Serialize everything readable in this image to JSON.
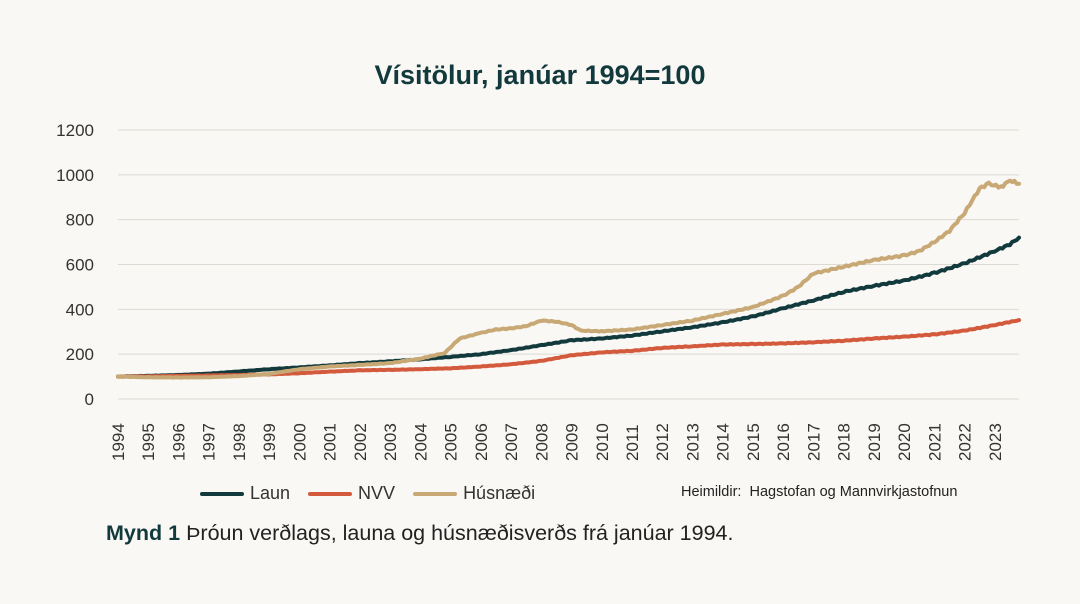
{
  "chart_data": {
    "type": "line",
    "title": "Vísitölur, janúar 1994=100",
    "x": [
      1994,
      1995,
      1996,
      1997,
      1998,
      1999,
      2000,
      2001,
      2002,
      2003,
      2004,
      2005,
      2006,
      2007,
      2008,
      2009,
      2010,
      2011,
      2012,
      2013,
      2014,
      2015,
      2016,
      2017,
      2018,
      2019,
      2020,
      2021,
      2022,
      2023
    ],
    "y_ticks": [
      0,
      200,
      400,
      600,
      800,
      1000,
      1200
    ],
    "ylim": [
      0,
      1200
    ],
    "xlabel": "",
    "ylabel": "",
    "series": [
      {
        "name": "Laun",
        "color": "#123a3d",
        "points": [
          [
            1994,
            100
          ],
          [
            1995,
            103
          ],
          [
            1996,
            107
          ],
          [
            1997,
            113
          ],
          [
            1998,
            123
          ],
          [
            1999,
            133
          ],
          [
            2000,
            141
          ],
          [
            2001,
            150
          ],
          [
            2002,
            160
          ],
          [
            2003,
            168
          ],
          [
            2004,
            177
          ],
          [
            2005,
            188
          ],
          [
            2006,
            200
          ],
          [
            2007,
            218
          ],
          [
            2008,
            240
          ],
          [
            2009,
            262
          ],
          [
            2010,
            270
          ],
          [
            2011,
            283
          ],
          [
            2012,
            302
          ],
          [
            2013,
            320
          ],
          [
            2014,
            342
          ],
          [
            2015,
            368
          ],
          [
            2016,
            405
          ],
          [
            2017,
            440
          ],
          [
            2018,
            478
          ],
          [
            2019,
            505
          ],
          [
            2020,
            528
          ],
          [
            2021,
            562
          ],
          [
            2022,
            605
          ],
          [
            2023,
            660
          ],
          [
            2023.5,
            690
          ],
          [
            2023.8,
            720
          ]
        ]
      },
      {
        "name": "NVV",
        "color": "#d35a3c",
        "points": [
          [
            1994,
            100
          ],
          [
            1995,
            101
          ],
          [
            1996,
            103
          ],
          [
            1997,
            105
          ],
          [
            1998,
            107
          ],
          [
            1999,
            110
          ],
          [
            2000,
            115
          ],
          [
            2001,
            122
          ],
          [
            2002,
            128
          ],
          [
            2003,
            130
          ],
          [
            2004,
            133
          ],
          [
            2005,
            137
          ],
          [
            2006,
            145
          ],
          [
            2007,
            155
          ],
          [
            2008,
            170
          ],
          [
            2009,
            195
          ],
          [
            2010,
            208
          ],
          [
            2011,
            215
          ],
          [
            2012,
            228
          ],
          [
            2013,
            235
          ],
          [
            2014,
            243
          ],
          [
            2015,
            245
          ],
          [
            2016,
            248
          ],
          [
            2017,
            253
          ],
          [
            2018,
            260
          ],
          [
            2019,
            270
          ],
          [
            2020,
            278
          ],
          [
            2021,
            288
          ],
          [
            2022,
            305
          ],
          [
            2023,
            330
          ],
          [
            2023.8,
            352
          ]
        ]
      },
      {
        "name": "Húsnæði",
        "color": "#c8a874",
        "points": [
          [
            1994,
            100
          ],
          [
            1995,
            97
          ],
          [
            1996,
            96
          ],
          [
            1997,
            97
          ],
          [
            1998,
            102
          ],
          [
            1999,
            112
          ],
          [
            2000,
            133
          ],
          [
            2001,
            145
          ],
          [
            2002,
            152
          ],
          [
            2003,
            160
          ],
          [
            2004,
            180
          ],
          [
            2004.8,
            205
          ],
          [
            2005.3,
            270
          ],
          [
            2006,
            295
          ],
          [
            2006.5,
            310
          ],
          [
            2007,
            315
          ],
          [
            2007.5,
            325
          ],
          [
            2008,
            350
          ],
          [
            2008.5,
            345
          ],
          [
            2009,
            330
          ],
          [
            2009.3,
            305
          ],
          [
            2010,
            302
          ],
          [
            2011,
            310
          ],
          [
            2012,
            330
          ],
          [
            2013,
            350
          ],
          [
            2014,
            380
          ],
          [
            2015,
            410
          ],
          [
            2016,
            460
          ],
          [
            2016.5,
            500
          ],
          [
            2017,
            560
          ],
          [
            2017.5,
            575
          ],
          [
            2018,
            590
          ],
          [
            2019,
            620
          ],
          [
            2020,
            640
          ],
          [
            2020.5,
            660
          ],
          [
            2021,
            700
          ],
          [
            2021.5,
            750
          ],
          [
            2022,
            830
          ],
          [
            2022.5,
            940
          ],
          [
            2022.8,
            960
          ],
          [
            2023.2,
            945
          ],
          [
            2023.5,
            975
          ],
          [
            2023.8,
            960
          ]
        ]
      }
    ],
    "legend_position": "bottom-left"
  },
  "source": "Heimildir:  Hagstofan og Mannvirkjastofnun",
  "caption": {
    "label": "Mynd 1",
    "text": "Þróun verðlags, launa og húsnæðisverðs frá janúar 1994."
  },
  "colors": {
    "background": "#f9f8f4",
    "grid": "#dcdad3",
    "title": "#123a3d"
  }
}
